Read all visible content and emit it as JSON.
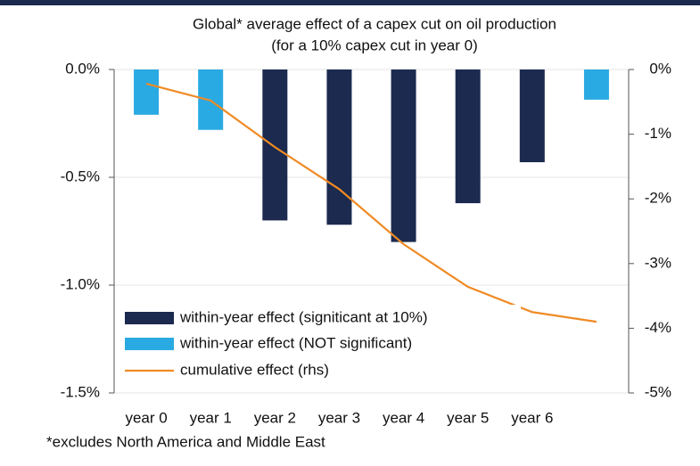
{
  "chart_data": {
    "type": "bar",
    "title": "Global* average effect of a capex cut on oil  production",
    "subtitle": "(for a 10% capex cut in year 0)",
    "footnote": "*excludes North America and Middle East",
    "categories": [
      "year 0",
      "year 1",
      "year 2",
      "year 3",
      "year 4",
      "year 5",
      "year 6",
      null
    ],
    "series": [
      {
        "name": "within-year effect (signiticant at 10%)",
        "type": "bar",
        "color": "#1b2a4e",
        "values": [
          null,
          null,
          -0.7,
          -0.72,
          -0.8,
          -0.62,
          -0.43,
          null
        ]
      },
      {
        "name": "within-year effect (NOT significant)",
        "type": "bar",
        "color": "#2aaae2",
        "values": [
          -0.21,
          -0.28,
          null,
          null,
          null,
          null,
          null,
          -0.14
        ]
      },
      {
        "name": "cumulative effect (rhs)",
        "type": "line",
        "axis": "y2",
        "color": "#f08a24",
        "values": [
          -0.22,
          -0.48,
          -1.2,
          -1.85,
          -2.7,
          -3.36,
          -3.75,
          -3.9
        ]
      }
    ],
    "ylim": [
      -1.5,
      0
    ],
    "yticks": [
      {
        "value": 0,
        "label": "0.0%"
      },
      {
        "value": -0.5,
        "label": "-0.5%"
      },
      {
        "value": -1.0,
        "label": "-1.0%"
      },
      {
        "value": -1.5,
        "label": "-1.5%"
      }
    ],
    "y2lim": [
      -5,
      0
    ],
    "y2ticks": [
      {
        "value": 0,
        "label": "0%"
      },
      {
        "value": -1,
        "label": "-1%"
      },
      {
        "value": -2,
        "label": "-2%"
      },
      {
        "value": -3,
        "label": "-3%"
      },
      {
        "value": -4,
        "label": "-4%"
      },
      {
        "value": -5,
        "label": "-5%"
      }
    ],
    "grid": true,
    "legend": "lower-left"
  }
}
